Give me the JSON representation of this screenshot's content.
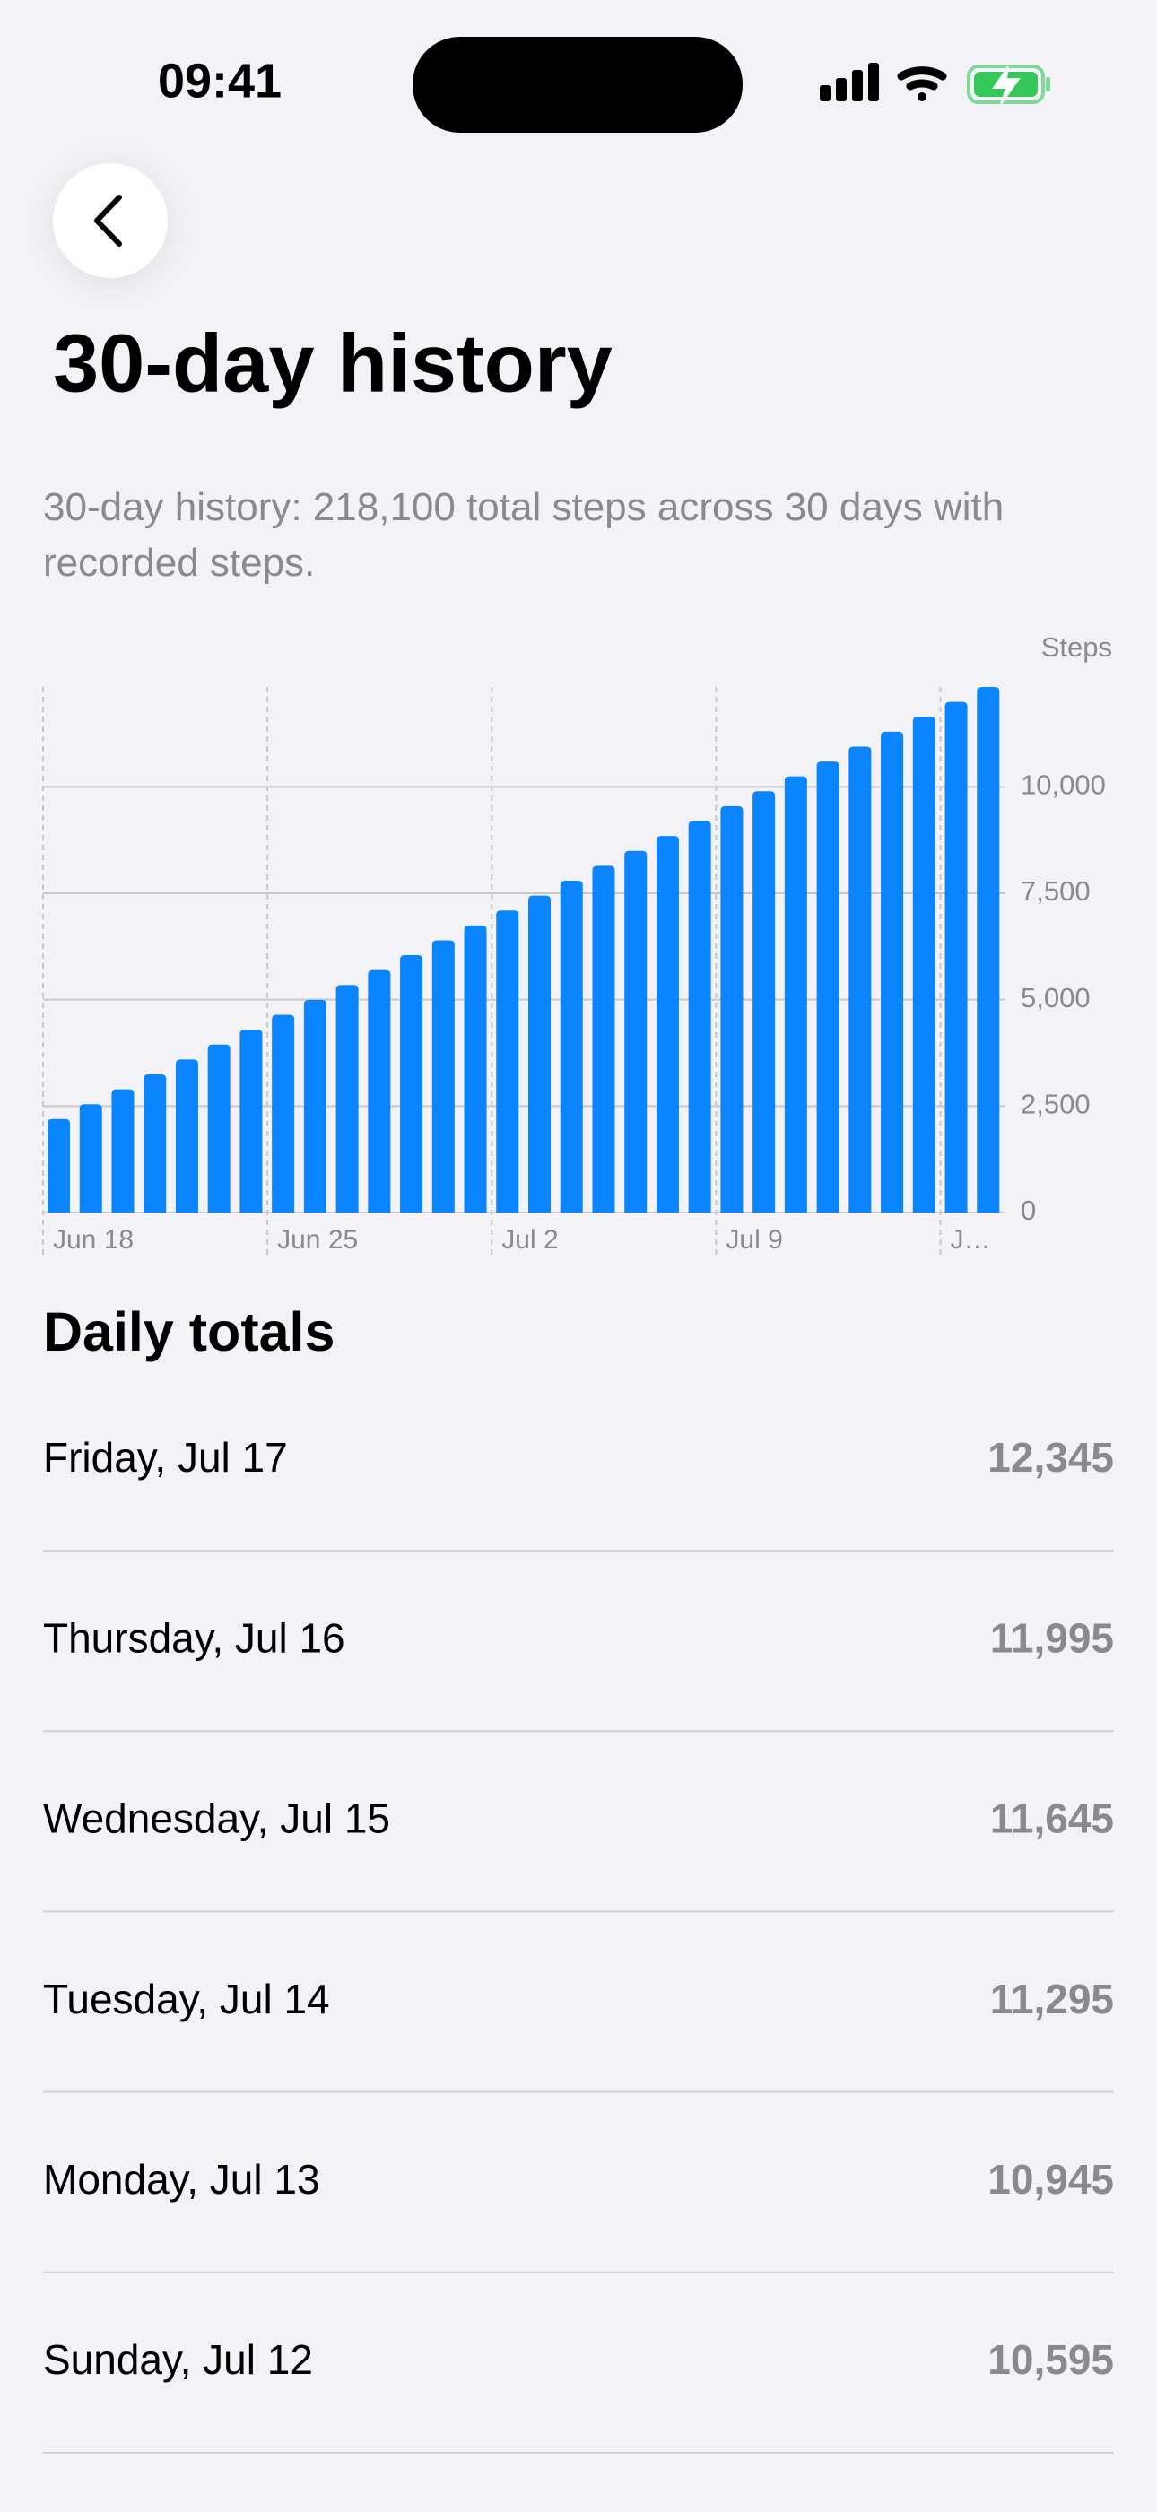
{
  "status_bar": {
    "time": "09:41"
  },
  "header": {
    "title": "30-day history"
  },
  "description": "30-day history: 218,100 total steps across 30 days with recorded steps.",
  "chart_data": {
    "type": "bar",
    "y_label": "Steps",
    "color": "#0a84ff",
    "categories": [
      "Jun 18",
      null,
      null,
      null,
      null,
      null,
      null,
      "Jun 25",
      null,
      null,
      null,
      null,
      null,
      null,
      "Jul 2",
      null,
      null,
      null,
      null,
      null,
      null,
      "Jul 9",
      null,
      null,
      null,
      null,
      null,
      null,
      "J…",
      null
    ],
    "values": [
      2195,
      2545,
      2895,
      3245,
      3595,
      3945,
      4295,
      4645,
      4995,
      5345,
      5695,
      6045,
      6395,
      6745,
      7095,
      7445,
      7795,
      8145,
      8495,
      8845,
      9195,
      9545,
      9895,
      10245,
      10595,
      10945,
      11295,
      11645,
      11995,
      12345
    ],
    "ylim": [
      0,
      12345
    ],
    "yticks": [
      0,
      {
        "value": 2500,
        "label": "2,500"
      },
      {
        "value": 5000,
        "label": "5,000"
      },
      {
        "value": 7500,
        "label": "7,500"
      },
      {
        "value": 10000,
        "label": "10,000"
      }
    ],
    "grid": true
  },
  "daily_totals": {
    "title": "Daily totals",
    "rows": [
      {
        "date": "Friday, Jul 17",
        "steps": "12,345"
      },
      {
        "date": "Thursday, Jul 16",
        "steps": "11,995"
      },
      {
        "date": "Wednesday, Jul 15",
        "steps": "11,645"
      },
      {
        "date": "Tuesday, Jul 14",
        "steps": "11,295"
      },
      {
        "date": "Monday, Jul 13",
        "steps": "10,945"
      },
      {
        "date": "Sunday, Jul 12",
        "steps": "10,595"
      }
    ]
  }
}
